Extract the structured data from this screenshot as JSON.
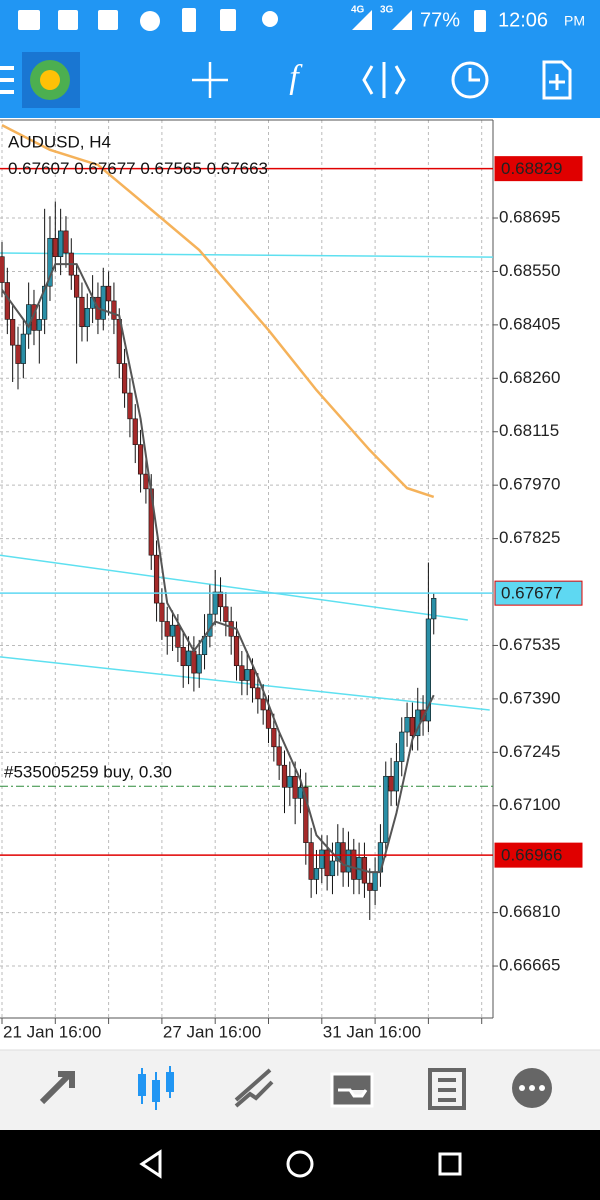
{
  "status_bar": {
    "network_1": "4G",
    "network_2": "3G",
    "battery": "77%",
    "time": "12:06",
    "meridiem": "PM"
  },
  "toolbar": {
    "function_icon": "f"
  },
  "chart_data": {
    "type": "candlestick",
    "title": "AUDUSD, H4",
    "up_color": "#2a8fa6",
    "down_color": "#a52a2a",
    "open": [
      0.6859,
      0.6852,
      0.6842,
      0.6835,
      0.683,
      0.6838,
      0.6846,
      0.6839,
      0.6842,
      0.6851,
      0.6864,
      0.6859,
      0.6866,
      0.686,
      0.6854,
      0.6848,
      0.684,
      0.6845,
      0.6848,
      0.6842,
      0.6851,
      0.6847,
      0.6842,
      0.683,
      0.6822,
      0.6815,
      0.6808,
      0.68,
      0.6796,
      0.6778,
      0.6765,
      0.676,
      0.6756,
      0.6759,
      0.6753,
      0.6748,
      0.6752,
      0.6746,
      0.6751,
      0.6756,
      0.6762,
      0.6768,
      0.6764,
      0.676,
      0.6756,
      0.6748,
      0.6744,
      0.6747,
      0.6742,
      0.6739,
      0.6736,
      0.6731,
      0.6726,
      0.6721,
      0.6715,
      0.6718,
      0.6712,
      0.6715,
      0.67,
      0.669,
      0.6693,
      0.6698,
      0.6691,
      0.6695,
      0.67,
      0.6692,
      0.6698,
      0.669,
      0.6696,
      0.6689,
      0.6687,
      0.6692,
      0.67,
      0.6718,
      0.6714,
      0.6722,
      0.673,
      0.6734,
      0.6729,
      0.6736,
      0.6733,
      0.67607
    ],
    "high": [
      0.6863,
      0.6856,
      0.6846,
      0.684,
      0.6842,
      0.6852,
      0.685,
      0.6846,
      0.6872,
      0.687,
      0.6874,
      0.6872,
      0.687,
      0.6864,
      0.6857,
      0.6852,
      0.6849,
      0.6854,
      0.6852,
      0.6856,
      0.6855,
      0.6852,
      0.6845,
      0.6834,
      0.6826,
      0.6819,
      0.6812,
      0.6804,
      0.68,
      0.6782,
      0.6769,
      0.6764,
      0.6763,
      0.6762,
      0.6757,
      0.6756,
      0.6756,
      0.6755,
      0.6762,
      0.677,
      0.6774,
      0.6772,
      0.6768,
      0.6764,
      0.676,
      0.6752,
      0.6752,
      0.675,
      0.6746,
      0.6743,
      0.674,
      0.6735,
      0.673,
      0.6725,
      0.6722,
      0.6722,
      0.672,
      0.6719,
      0.6704,
      0.6698,
      0.6702,
      0.6702,
      0.67,
      0.6705,
      0.6704,
      0.6703,
      0.6701,
      0.67,
      0.67,
      0.6693,
      0.6696,
      0.6705,
      0.6722,
      0.6723,
      0.6727,
      0.6734,
      0.6738,
      0.6738,
      0.6742,
      0.674,
      0.6776,
      0.67677
    ],
    "low": [
      0.6848,
      0.6838,
      0.6825,
      0.6823,
      0.6826,
      0.6834,
      0.6835,
      0.683,
      0.6838,
      0.6847,
      0.6855,
      0.6854,
      0.6856,
      0.685,
      0.683,
      0.6836,
      0.6836,
      0.6841,
      0.6838,
      0.6839,
      0.6843,
      0.6838,
      0.6826,
      0.6818,
      0.681,
      0.6803,
      0.6795,
      0.6792,
      0.6774,
      0.676,
      0.6755,
      0.6751,
      0.6752,
      0.6749,
      0.6742,
      0.6743,
      0.6741,
      0.6742,
      0.6747,
      0.6753,
      0.6759,
      0.676,
      0.6756,
      0.6751,
      0.6744,
      0.674,
      0.674,
      0.6738,
      0.6735,
      0.6732,
      0.6727,
      0.6722,
      0.6717,
      0.6708,
      0.671,
      0.6705,
      0.6708,
      0.6694,
      0.6685,
      0.6686,
      0.6689,
      0.6687,
      0.6686,
      0.6691,
      0.6688,
      0.6688,
      0.6686,
      0.6686,
      0.6685,
      0.6679,
      0.6683,
      0.6688,
      0.6696,
      0.671,
      0.671,
      0.6718,
      0.6726,
      0.6725,
      0.6725,
      0.6729,
      0.673,
      0.67565
    ],
    "close": [
      0.6852,
      0.6842,
      0.6835,
      0.683,
      0.6838,
      0.6846,
      0.6839,
      0.6842,
      0.6851,
      0.6864,
      0.6859,
      0.6866,
      0.686,
      0.6854,
      0.6848,
      0.684,
      0.6845,
      0.6848,
      0.6842,
      0.6851,
      0.6847,
      0.6842,
      0.683,
      0.6822,
      0.6815,
      0.6808,
      0.68,
      0.6796,
      0.6778,
      0.6765,
      0.676,
      0.6756,
      0.6759,
      0.6753,
      0.6748,
      0.6752,
      0.6746,
      0.6751,
      0.6756,
      0.6762,
      0.6768,
      0.6764,
      0.676,
      0.6756,
      0.6748,
      0.6744,
      0.6747,
      0.6742,
      0.6739,
      0.6736,
      0.6731,
      0.6726,
      0.6721,
      0.6715,
      0.6718,
      0.6712,
      0.6715,
      0.67,
      0.669,
      0.6693,
      0.6698,
      0.6691,
      0.6695,
      0.67,
      0.6692,
      0.6698,
      0.669,
      0.6696,
      0.6689,
      0.6687,
      0.6692,
      0.67,
      0.6718,
      0.6714,
      0.6722,
      0.673,
      0.6734,
      0.6729,
      0.6736,
      0.6733,
      0.67607,
      0.67663
    ],
    "series": [
      {
        "color": "#f5b25a",
        "x": [
          0,
          9,
          18,
          27,
          37,
          50,
          59,
          69,
          76,
          81
        ],
        "values": [
          0.68947,
          0.6888,
          0.68839,
          0.6873,
          0.68608,
          0.68391,
          0.68228,
          0.68065,
          0.67962,
          0.67938
        ]
      },
      {
        "color": "#555555",
        "x": [
          0,
          5,
          10,
          14,
          18,
          22,
          26,
          29,
          31,
          36,
          40,
          44,
          48,
          52,
          56,
          59,
          64,
          69,
          71,
          74,
          77,
          81
        ],
        "values": [
          0.685,
          0.684,
          0.6857,
          0.6857,
          0.6845,
          0.6843,
          0.6815,
          0.6785,
          0.6765,
          0.6752,
          0.676,
          0.6758,
          0.6745,
          0.673,
          0.6717,
          0.6702,
          0.6694,
          0.6692,
          0.6692,
          0.6708,
          0.6728,
          0.674
        ]
      }
    ],
    "trendlines": [
      {
        "color": "#5ee0f0",
        "x": [
          -0.375,
          92.12
        ],
        "values": [
          0.686,
          0.68589
        ]
      },
      {
        "color": "#5ee0f0",
        "x": [
          -0.375,
          87.4
        ],
        "values": [
          0.6778,
          0.67604
        ]
      },
      {
        "color": "#5ee0f0",
        "x": [
          -0.375,
          91.5
        ],
        "values": [
          0.67504,
          0.6736
        ]
      }
    ],
    "levels": [
      {
        "value": 0.68829,
        "color": "#e00000"
      },
      {
        "value": 0.67677,
        "color": "#5ed8f2"
      },
      {
        "value": 0.66966,
        "color": "#e00000"
      }
    ],
    "order_line": {
      "value": 0.67153,
      "text": "#535005259 buy, 0.30",
      "color": "#2e8b3a"
    },
    "ylim": [
      0.66524,
      0.68961
    ],
    "yticks": [
      0.68695,
      {
        "value": 0.6855,
        "label": "0.68550"
      },
      0.68405,
      {
        "value": 0.6826,
        "label": "0.68260"
      },
      0.68115,
      {
        "value": 0.6797,
        "label": "0.67970"
      },
      0.67825,
      0.67535,
      {
        "value": 0.6739,
        "label": "0.67390"
      },
      0.67245,
      {
        "value": 0.671,
        "label": "0.67100"
      },
      {
        "value": 0.6681,
        "label": "0.66810"
      },
      0.66665
    ],
    "xlim": [
      -0.375,
      92.12
    ],
    "xticks": [
      {
        "value": 0,
        "label": "21 Jan 16:00"
      },
      {
        "value": 30,
        "label": "27 Jan 16:00"
      },
      {
        "value": 60,
        "label": "31 Jan 16:00"
      }
    ],
    "x_minor_ticks": [
      10,
      20,
      40,
      50,
      70,
      80,
      90
    ],
    "grid": true
  }
}
